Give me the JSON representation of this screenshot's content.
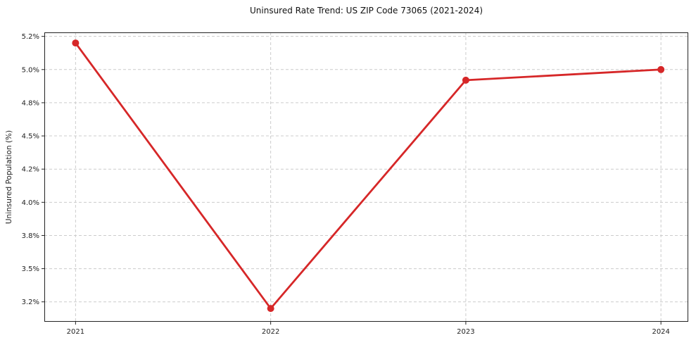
{
  "page": {
    "background": "#ffffff"
  },
  "chart": {
    "title": "Uninsured Rate Trend: US ZIP Code 73065 (2021-2024)",
    "y_axis_label": "Uninsured Population (%)"
  },
  "chart_data": {
    "type": "line",
    "title": "Uninsured Rate Trend: US ZIP Code 73065 (2021-2024)",
    "xlabel": "",
    "ylabel": "Uninsured Population (%)",
    "categories": [
      "2021",
      "2022",
      "2023",
      "2024"
    ],
    "values": [
      5.2,
      3.2,
      4.92,
      5.0
    ],
    "value_unit": "%",
    "ylim": [
      3.1,
      5.28
    ],
    "xlim": [
      -0.16,
      3.14
    ],
    "y_ticks": [
      {
        "value": 3.25,
        "label": "3.2%"
      },
      {
        "value": 3.5,
        "label": "3.5%"
      },
      {
        "value": 3.75,
        "label": "3.8%"
      },
      {
        "value": 4.0,
        "label": "4.0%"
      },
      {
        "value": 4.25,
        "label": "4.2%"
      },
      {
        "value": 4.5,
        "label": "4.5%"
      },
      {
        "value": 4.75,
        "label": "4.8%"
      },
      {
        "value": 5.0,
        "label": "5.0%"
      },
      {
        "value": 5.25,
        "label": "5.2%"
      }
    ],
    "grid": true,
    "legend_position": "none",
    "style": {
      "line_color": "#d62728",
      "marker": "circle",
      "marker_radius": 5,
      "line_width": 2.8,
      "grid_color": "#cccccc",
      "grid_dash": "4 3",
      "axis_color": "#222222",
      "tick_text_color": "#222222",
      "background": "#ffffff"
    }
  }
}
